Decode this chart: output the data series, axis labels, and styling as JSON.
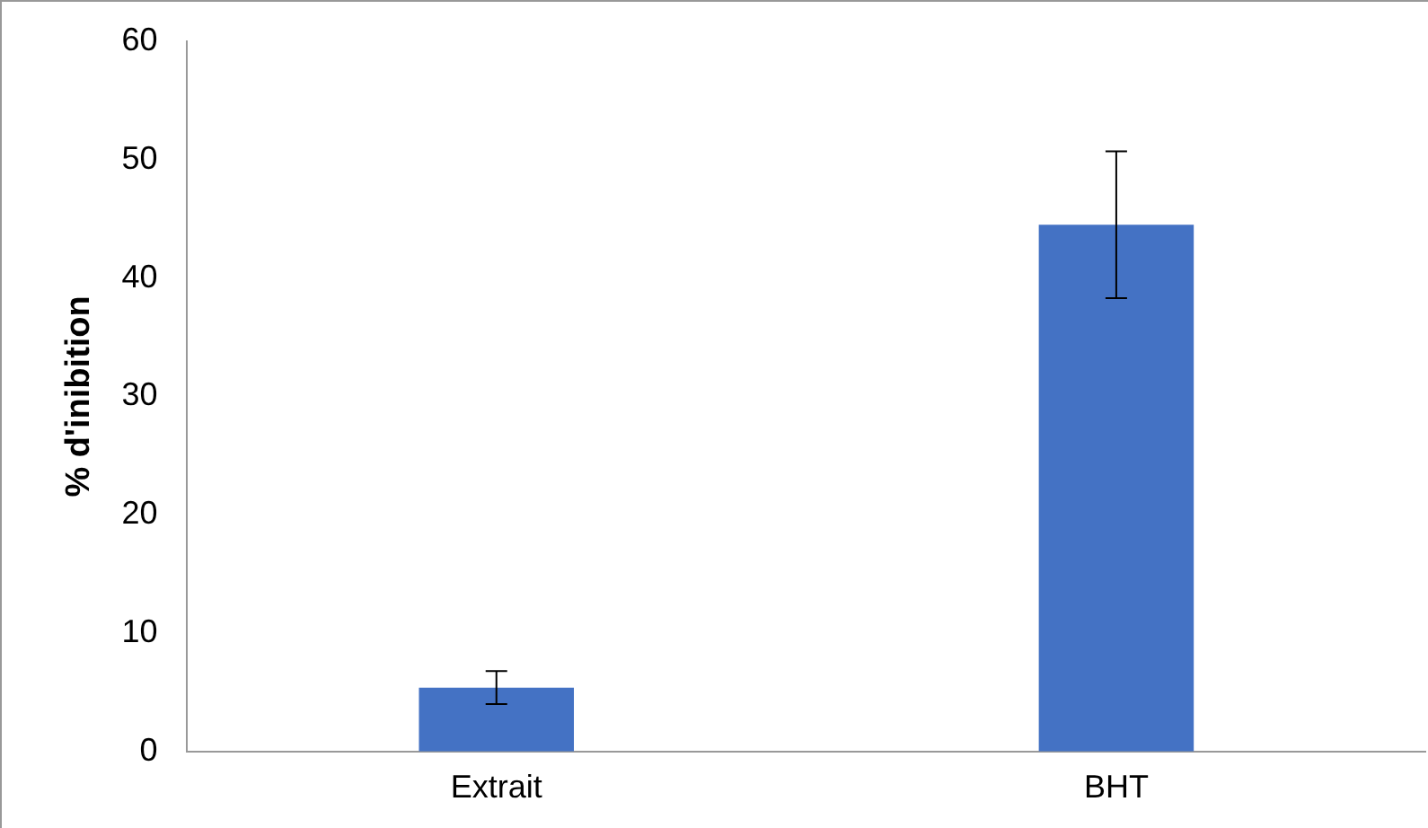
{
  "chart_data": {
    "type": "bar",
    "ylabel": "% d'inibition",
    "categories": [
      "Extrait",
      "BHT"
    ],
    "values": [
      5.4,
      44.5
    ],
    "color": "#4472c4",
    "errors": [
      1.4,
      6.2
    ],
    "ylim": [
      0,
      60
    ],
    "yticks": [
      0,
      10,
      20,
      30,
      40,
      50,
      60
    ],
    "grid": false,
    "legend": false
  }
}
